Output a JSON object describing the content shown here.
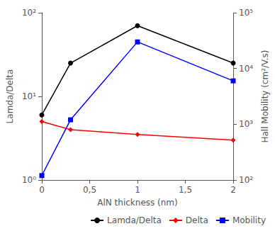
{
  "chart_data": {
    "type": "line",
    "xlabel": "AlN thickness (nm)",
    "ylabel": "Lamda/Delta",
    "y2label": "Hall Mobility (cm²/V.s)",
    "x": [
      0,
      0.3,
      1.0,
      2.0
    ],
    "xlim": [
      0,
      2
    ],
    "xticks": [
      0,
      {
        "value": 0.5,
        "label": "0,5"
      },
      1,
      {
        "value": 1.5,
        "label": "1,5"
      },
      2
    ],
    "ylim": [
      1,
      100
    ],
    "yticks": [
      {
        "value": 1,
        "label": "10⁰"
      },
      {
        "value": 10,
        "label": "10¹"
      },
      {
        "value": 100,
        "label": "10²"
      }
    ],
    "y2lim": [
      100,
      100000
    ],
    "y2ticks": [
      {
        "value": 100,
        "label": "10²"
      },
      {
        "value": 1000,
        "label": "10³"
      },
      {
        "value": 10000,
        "label": "10⁴"
      },
      {
        "value": 100000,
        "label": "10⁵"
      }
    ],
    "log": "y",
    "grid": false,
    "legend": "lower right",
    "series": [
      {
        "name": "Lamda/Delta",
        "color": "black",
        "marker": "circle",
        "values": [
          6.0,
          25.0,
          70.0,
          25.0
        ]
      },
      {
        "name": "Delta",
        "color": "red",
        "marker": "diamond",
        "values": [
          5.0,
          4.0,
          3.5,
          3.0
        ]
      },
      {
        "name": "Mobility",
        "color": "blue",
        "marker": "square",
        "axis": "y2",
        "values": [
          120,
          1200,
          30000,
          6000
        ]
      }
    ]
  }
}
